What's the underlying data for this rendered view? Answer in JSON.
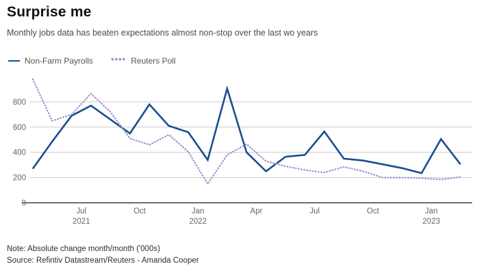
{
  "header": {
    "title": "Surprise me",
    "subtitle": "Monthly jobs data has beaten expectations almost non-stop over the last wo years"
  },
  "legend": [
    {
      "label": "Non-Farm Payrolls",
      "color": "#1a4c92",
      "style": "solid"
    },
    {
      "label": "Reuters Poll",
      "color": "#9b90cf",
      "style": "dotted",
      "swatch_glyph": "••••"
    }
  ],
  "footer": {
    "note": "Note: Absolute change month/month ('000s)",
    "source": "Source: Refintiv Datastream/Reuters - Amanda Cooper"
  },
  "colors": {
    "grid": "#cccccc",
    "axis": "#1a1a1a",
    "tick_text": "#666666",
    "nfp_line": "#1a4c92",
    "poll_line": "#9b90cf"
  },
  "chart_data": {
    "type": "line",
    "title": "Surprise me",
    "xlabel": "",
    "ylabel": "Absolute change month/month ('000s)",
    "ylim": [
      0,
      1000
    ],
    "yticks": [
      0,
      200,
      400,
      600,
      800
    ],
    "grid": true,
    "legend_position": "top-left",
    "x": [
      "Apr 2021",
      "May 2021",
      "Jun 2021",
      "Jul 2021",
      "Aug 2021",
      "Sep 2021",
      "Oct 2021",
      "Nov 2021",
      "Dec 2021",
      "Jan 2022",
      "Feb 2022",
      "Mar 2022",
      "Apr 2022",
      "May 2022",
      "Jun 2022",
      "Jul 2022",
      "Aug 2022",
      "Sep 2022",
      "Oct 2022",
      "Nov 2022",
      "Dec 2022",
      "Jan 2023",
      "Feb 2023"
    ],
    "xticks": [
      {
        "index": 3,
        "label": "Jul",
        "year": "2021"
      },
      {
        "index": 6,
        "label": "Oct"
      },
      {
        "index": 9,
        "label": "Jan",
        "year": "2022"
      },
      {
        "index": 12,
        "label": "Apr"
      },
      {
        "index": 15,
        "label": "Jul"
      },
      {
        "index": 18,
        "label": "Oct"
      },
      {
        "index": 21,
        "label": "Jan",
        "year": "2023"
      }
    ],
    "series": [
      {
        "name": "Non-Farm Payrolls",
        "style": "solid",
        "values": [
          270,
          485,
          690,
          770,
          660,
          550,
          780,
          610,
          560,
          340,
          905,
          400,
          250,
          365,
          380,
          565,
          350,
          335,
          305,
          275,
          235,
          505,
          305
        ]
      },
      {
        "name": "Reuters Poll",
        "style": "dotted",
        "values": [
          980,
          650,
          700,
          865,
          720,
          510,
          460,
          540,
          405,
          150,
          380,
          465,
          330,
          290,
          260,
          240,
          285,
          250,
          200,
          200,
          195,
          185,
          205
        ]
      }
    ]
  }
}
